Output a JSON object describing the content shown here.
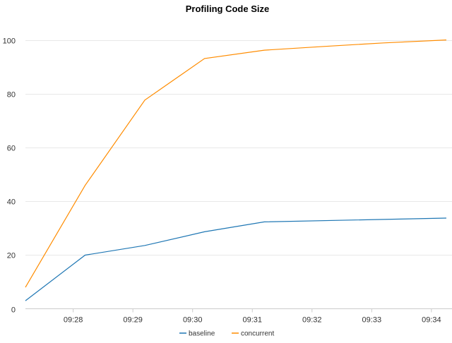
{
  "chart_data": {
    "type": "line",
    "title": "Profiling Code Size",
    "xlabel": "",
    "ylabel": "",
    "ylim": [
      0,
      108
    ],
    "xlim": [
      "09:27:12",
      "09:34:15"
    ],
    "yticks": [
      0,
      20,
      40,
      60,
      80,
      100
    ],
    "xticks": [
      "09:28",
      "09:29",
      "09:30",
      "09:31",
      "09:32",
      "09:33",
      "09:34"
    ],
    "grid": "horizontal",
    "legend": "bottom-center",
    "series": [
      {
        "name": "baseline",
        "color": "#1f77b4",
        "points": [
          [
            "09:27:12",
            3
          ],
          [
            "09:28:12",
            20
          ],
          [
            "09:29:12",
            23.6
          ],
          [
            "09:30:12",
            28.7
          ],
          [
            "09:31:12",
            32.4
          ],
          [
            "09:34:15",
            33.8
          ]
        ]
      },
      {
        "name": "concurrent",
        "color": "#ff8c00",
        "points": [
          [
            "09:27:12",
            8
          ],
          [
            "09:28:12",
            46
          ],
          [
            "09:29:12",
            77.8
          ],
          [
            "09:30:12",
            93.3
          ],
          [
            "09:31:12",
            96.4
          ],
          [
            "09:32:12",
            97.8
          ],
          [
            "09:33:12",
            99.1
          ],
          [
            "09:34:15",
            100.2
          ]
        ]
      }
    ]
  }
}
